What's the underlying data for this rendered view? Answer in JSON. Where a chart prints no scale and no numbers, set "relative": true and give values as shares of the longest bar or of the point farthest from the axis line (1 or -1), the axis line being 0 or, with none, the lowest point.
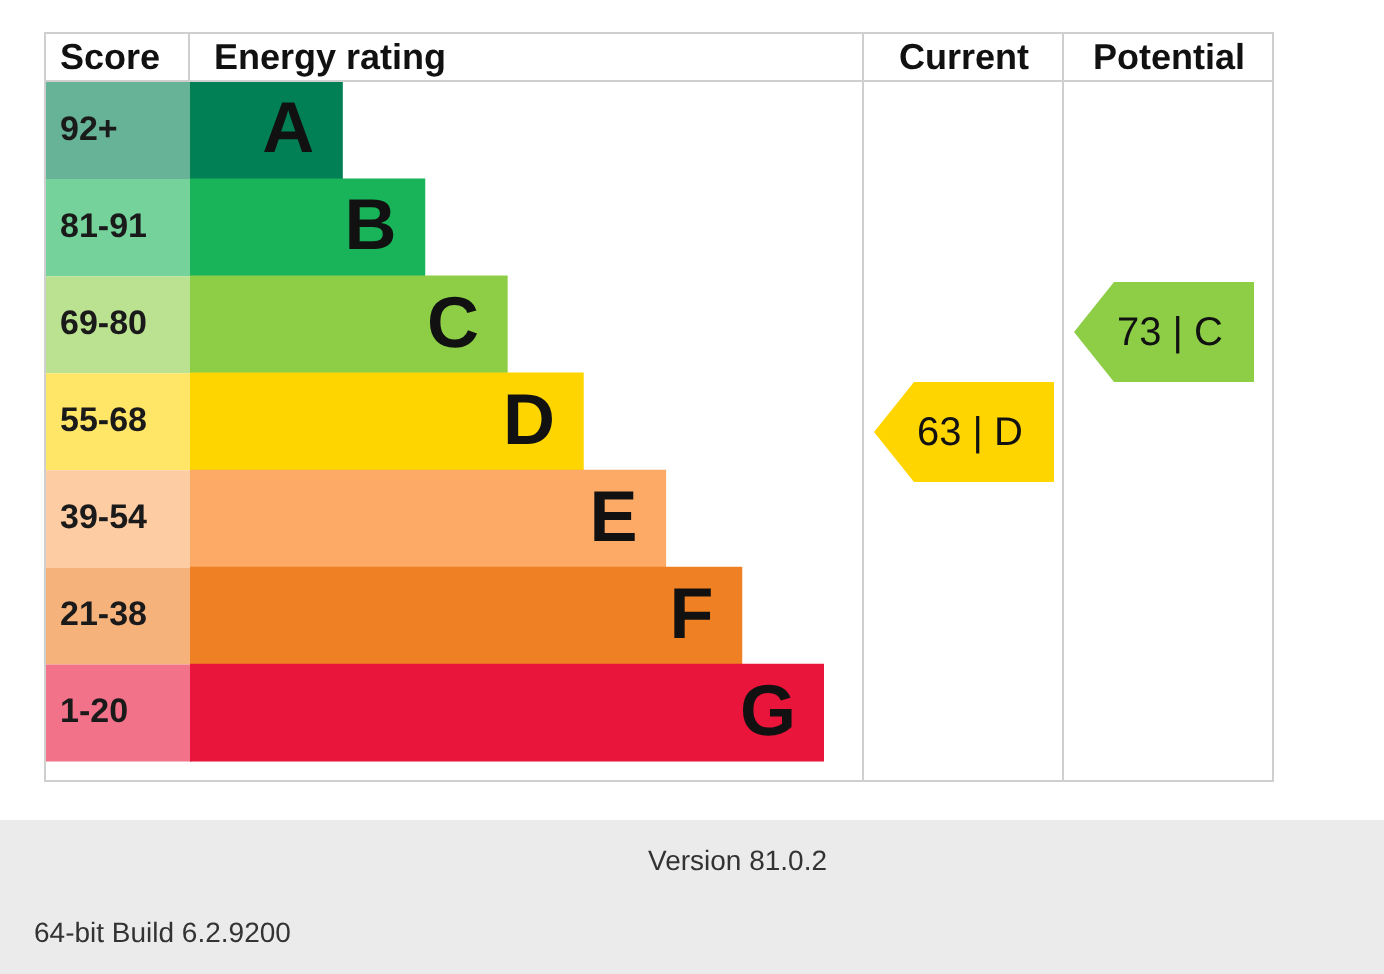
{
  "chart_data": [
    {
      "type": "bar",
      "orientation": "horizontal",
      "relative": true,
      "xlabel": "Energy rating",
      "ylabel": "Score",
      "categories": [
        "92+",
        "81-91",
        "69-80",
        "55-68",
        "39-54",
        "21-38",
        "1-20"
      ],
      "values": [
        0.24,
        0.37,
        0.5,
        0.62,
        0.75,
        0.87,
        1
      ],
      "colors": [
        "#008054",
        "#19b459",
        "#8dce46",
        "#ffd500",
        "#fcaa65",
        "#ef8023",
        "#e9153b"
      ],
      "annotations": [
        {
          "text": "A",
          "x": 0.24,
          "y": "92+"
        },
        {
          "text": "B",
          "x": 0.37,
          "y": "81-91"
        },
        {
          "text": "C",
          "x": 0.5,
          "y": "69-80"
        },
        {
          "text": "D",
          "x": 0.62,
          "y": "55-68"
        },
        {
          "text": "E",
          "x": 0.75,
          "y": "39-54"
        },
        {
          "text": "F",
          "x": 0.87,
          "y": "21-38"
        },
        {
          "text": "G",
          "x": 1,
          "y": "1-20"
        },
        "Version 81.0.2",
        "64-bit Build 6.2.9200"
      ]
    },
    {
      "type": "other",
      "title": "Current",
      "categories": [
        null,
        null,
        null,
        null,
        null,
        null,
        null
      ],
      "values": [
        null,
        null,
        null,
        63,
        null,
        null,
        null
      ],
      "value_labels": [
        null,
        null,
        null,
        "63 | D",
        null,
        null,
        null
      ],
      "color": "#ffd500"
    },
    {
      "type": "other",
      "title": "Potential",
      "categories": [
        null,
        null,
        null,
        null,
        null,
        null,
        null
      ],
      "values": [
        null,
        null,
        73,
        null,
        null,
        null,
        null
      ],
      "value_labels": [
        null,
        null,
        "73 | C",
        null,
        null,
        null,
        null
      ],
      "color": "#8dce46"
    }
  ]
}
